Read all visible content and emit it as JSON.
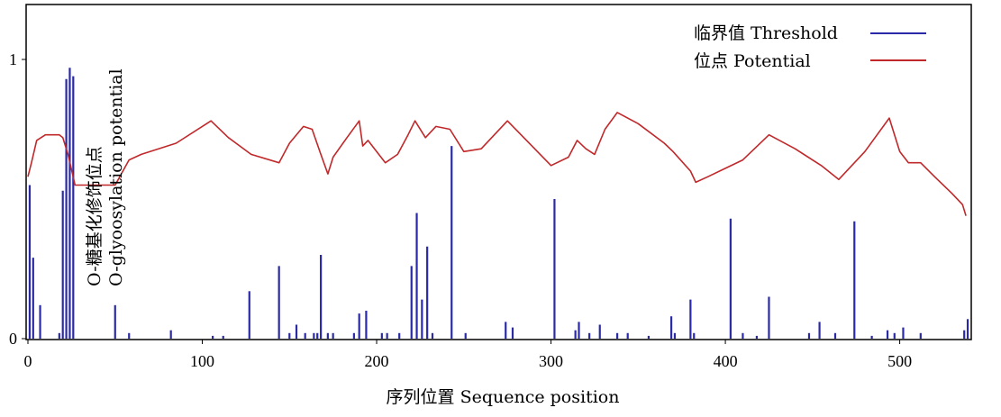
{
  "chart_data": {
    "type": "line",
    "title": "",
    "xlabel": "序列位置 Sequence position",
    "ylabel_line1": "O-糖基化修饰位点",
    "ylabel_line2": "O-glyoosylation potential",
    "xlim": [
      0,
      540
    ],
    "ylim": [
      0,
      1.0
    ],
    "xticks": [
      0,
      100,
      200,
      300,
      400,
      500
    ],
    "yticks": [
      0,
      1
    ],
    "legend_position": "top-right",
    "colors": {
      "threshold": "#2a2aa8",
      "potential": "#c0282a"
    },
    "legend": [
      {
        "label": "临界值 Threshold",
        "series": "threshold"
      },
      {
        "label": "位点 Potential",
        "series": "potential"
      }
    ],
    "series": [
      {
        "key": "potential",
        "name": "位点 Potential",
        "style": "line",
        "x": [
          0,
          2,
          5,
          10,
          18,
          20,
          23,
          27,
          35,
          50,
          58,
          65,
          85,
          105,
          115,
          128,
          144,
          150,
          158,
          163,
          168,
          172,
          175,
          183,
          190,
          192,
          195,
          200,
          205,
          212,
          218,
          222,
          228,
          234,
          242,
          250,
          260,
          275,
          300,
          310,
          315,
          320,
          325,
          331,
          338,
          350,
          365,
          370,
          380,
          383,
          390,
          400,
          410,
          425,
          440,
          455,
          465,
          480,
          494,
          500,
          505,
          512,
          520,
          530,
          536,
          538
        ],
        "y": [
          0.58,
          0.63,
          0.71,
          0.73,
          0.73,
          0.72,
          0.66,
          0.55,
          0.55,
          0.55,
          0.64,
          0.66,
          0.7,
          0.78,
          0.72,
          0.66,
          0.63,
          0.7,
          0.76,
          0.75,
          0.66,
          0.59,
          0.65,
          0.72,
          0.78,
          0.69,
          0.71,
          0.67,
          0.63,
          0.66,
          0.73,
          0.78,
          0.72,
          0.76,
          0.75,
          0.67,
          0.68,
          0.78,
          0.62,
          0.65,
          0.71,
          0.68,
          0.66,
          0.75,
          0.81,
          0.77,
          0.7,
          0.67,
          0.6,
          0.56,
          0.58,
          0.61,
          0.64,
          0.73,
          0.68,
          0.62,
          0.57,
          0.67,
          0.79,
          0.67,
          0.63,
          0.63,
          0.58,
          0.52,
          0.48,
          0.44
        ]
      },
      {
        "key": "threshold",
        "name": "临界值 Threshold",
        "style": "spikes",
        "x": [
          1,
          3,
          7,
          18,
          20,
          22,
          24,
          26,
          50,
          58,
          82,
          106,
          112,
          127,
          144,
          150,
          154,
          159,
          164,
          166,
          168,
          172,
          175,
          187,
          190,
          194,
          203,
          206,
          213,
          220,
          223,
          226,
          229,
          232,
          243,
          251,
          274,
          278,
          302,
          314,
          316,
          322,
          328,
          338,
          344,
          356,
          369,
          371,
          380,
          382,
          403,
          410,
          418,
          425,
          448,
          454,
          463,
          474,
          484,
          493,
          497,
          502,
          512,
          537,
          539
        ],
        "y": [
          0.55,
          0.29,
          0.12,
          0.02,
          0.53,
          0.93,
          0.97,
          0.94,
          0.12,
          0.02,
          0.03,
          0.01,
          0.01,
          0.17,
          0.26,
          0.02,
          0.05,
          0.02,
          0.02,
          0.02,
          0.3,
          0.02,
          0.02,
          0.02,
          0.09,
          0.1,
          0.02,
          0.02,
          0.02,
          0.26,
          0.45,
          0.14,
          0.33,
          0.02,
          0.69,
          0.02,
          0.06,
          0.04,
          0.5,
          0.03,
          0.06,
          0.02,
          0.05,
          0.02,
          0.02,
          0.01,
          0.08,
          0.02,
          0.14,
          0.02,
          0.43,
          0.02,
          0.01,
          0.15,
          0.02,
          0.06,
          0.02,
          0.42,
          0.01,
          0.03,
          0.02,
          0.04,
          0.02,
          0.03,
          0.07
        ]
      }
    ]
  }
}
